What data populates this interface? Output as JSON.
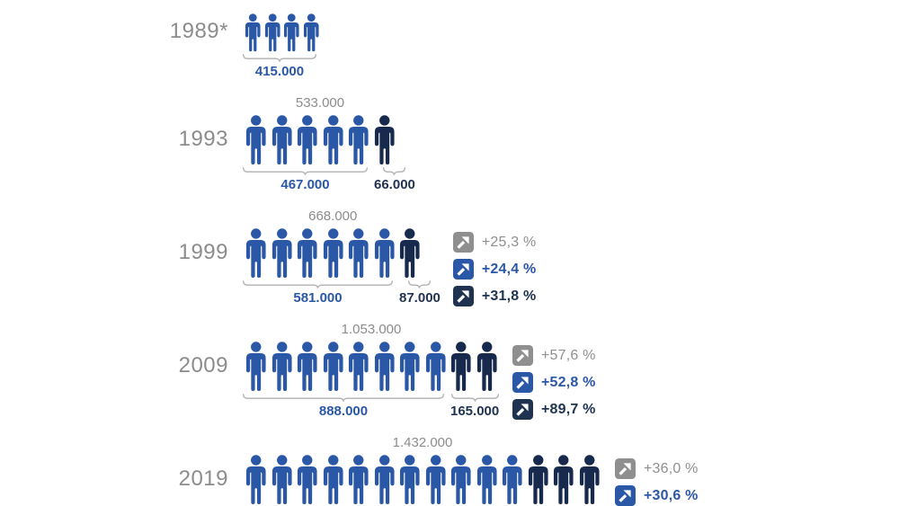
{
  "colors": {
    "blue": "#2b58a6",
    "dark": "#17294c",
    "gray_text": "#8c8c8c",
    "percent_gray": "#8f8f8f",
    "dark_label": "#1f3250",
    "bracket": "#b0b0b0"
  },
  "icons": {
    "person": "person-icon",
    "trend": "trend-up-arrow-icon"
  },
  "rows": [
    {
      "year": "1989*",
      "total": null,
      "blue_count": 4,
      "dark_count": 0,
      "blue_label": "415.000",
      "dark_label": null,
      "small": true,
      "badges": []
    },
    {
      "year": "1993",
      "total": "533.000",
      "blue_count": 5,
      "dark_count": 1,
      "blue_label": "467.000",
      "dark_label": "66.000",
      "small": false,
      "badges": []
    },
    {
      "year": "1999",
      "total": "668.000",
      "blue_count": 6,
      "dark_count": 1,
      "blue_label": "581.000",
      "dark_label": "87.000",
      "small": false,
      "badges": [
        {
          "tone": "gray",
          "label": "+25,3 %"
        },
        {
          "tone": "blue",
          "label": "+24,4 %"
        },
        {
          "tone": "dark",
          "label": "+31,8 %"
        }
      ]
    },
    {
      "year": "2009",
      "total": "1.053.000",
      "blue_count": 8,
      "dark_count": 2,
      "blue_label": "888.000",
      "dark_label": "165.000",
      "small": false,
      "badges": [
        {
          "tone": "gray",
          "label": "+57,6 %"
        },
        {
          "tone": "blue",
          "label": "+52,8 %"
        },
        {
          "tone": "dark",
          "label": "+89,7 %"
        }
      ]
    },
    {
      "year": "2019",
      "total": "1.432.000",
      "blue_count": 11,
      "dark_count": 3,
      "blue_label": null,
      "dark_label": null,
      "small": false,
      "badges": [
        {
          "tone": "gray",
          "label": "+36,0 %"
        },
        {
          "tone": "blue",
          "label": "+30,6 %"
        }
      ]
    }
  ],
  "chart_data": {
    "type": "bar",
    "subtype": "pictogram",
    "categories": [
      "1989*",
      "1993",
      "1999",
      "2009",
      "2019"
    ],
    "series": [
      {
        "name": "segment-blue",
        "color": "#2b58a6",
        "values": [
          415000,
          467000,
          581000,
          888000,
          null
        ],
        "labels": [
          "415.000",
          "467.000",
          "581.000",
          "888.000",
          null
        ]
      },
      {
        "name": "segment-dark",
        "color": "#17294c",
        "values": [
          null,
          66000,
          87000,
          165000,
          null
        ],
        "labels": [
          null,
          "66.000",
          "87.000",
          "165.000",
          null
        ]
      },
      {
        "name": "total",
        "color": "#8c8c8c",
        "values": [
          415000,
          533000,
          668000,
          1053000,
          1432000
        ],
        "labels": [
          null,
          "533.000",
          "668.000",
          "1.053.000",
          "1.432.000"
        ]
      }
    ],
    "icon_counts": {
      "blue": [
        4,
        5,
        6,
        8,
        11
      ],
      "dark": [
        0,
        1,
        1,
        2,
        3
      ]
    },
    "growth_annotations": [
      {
        "category": "1999",
        "total_growth": "+25,3 %",
        "blue_growth": "+24,4 %",
        "dark_growth": "+31,8 %"
      },
      {
        "category": "2009",
        "total_growth": "+57,6 %",
        "blue_growth": "+52,8 %",
        "dark_growth": "+89,7 %"
      },
      {
        "category": "2019",
        "total_growth": "+36,0 %",
        "blue_growth": "+30,6 %"
      }
    ],
    "title": "",
    "xlabel": "",
    "ylabel": "",
    "legend_position": "none",
    "grid": false
  }
}
